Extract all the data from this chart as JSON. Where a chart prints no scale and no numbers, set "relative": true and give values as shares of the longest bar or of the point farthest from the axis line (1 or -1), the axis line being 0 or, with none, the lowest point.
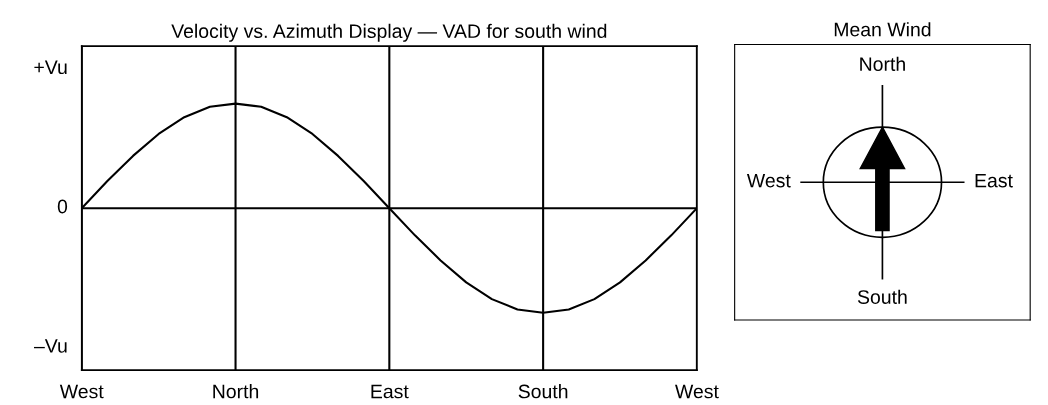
{
  "chart_data": [
    {
      "type": "line",
      "title": "Velocity vs. Azimuth Display — VAD for south wind",
      "categories": [
        "West",
        null,
        null,
        null,
        null,
        null,
        "North",
        null,
        null,
        null,
        null,
        null,
        "East",
        null,
        null,
        null,
        null,
        null,
        "South",
        null,
        null,
        null,
        null,
        null,
        "West"
      ],
      "relative": true,
      "series": [
        {
          "color": "#000000",
          "values": [
            0,
            0.26,
            0.5,
            0.71,
            0.87,
            0.97,
            1,
            0.97,
            0.87,
            0.71,
            0.5,
            0.26,
            0,
            -0.26,
            -0.5,
            -0.71,
            -0.87,
            -0.97,
            -1,
            -0.97,
            -0.87,
            -0.71,
            -0.5,
            -0.26,
            0
          ]
        }
      ],
      "annotations": [
        "+Vu",
        "0",
        "–Vu"
      ],
      "grid": "x",
      "ref_lines": [
        {
          "axis": "y",
          "value": 0,
          "color": "#000000"
        }
      ],
      "marker": "none",
      "line_style": "solid"
    },
    {
      "type": "other",
      "title": "Mean Wind",
      "annotations": [
        "North",
        "East",
        "South",
        "West"
      ]
    }
  ]
}
